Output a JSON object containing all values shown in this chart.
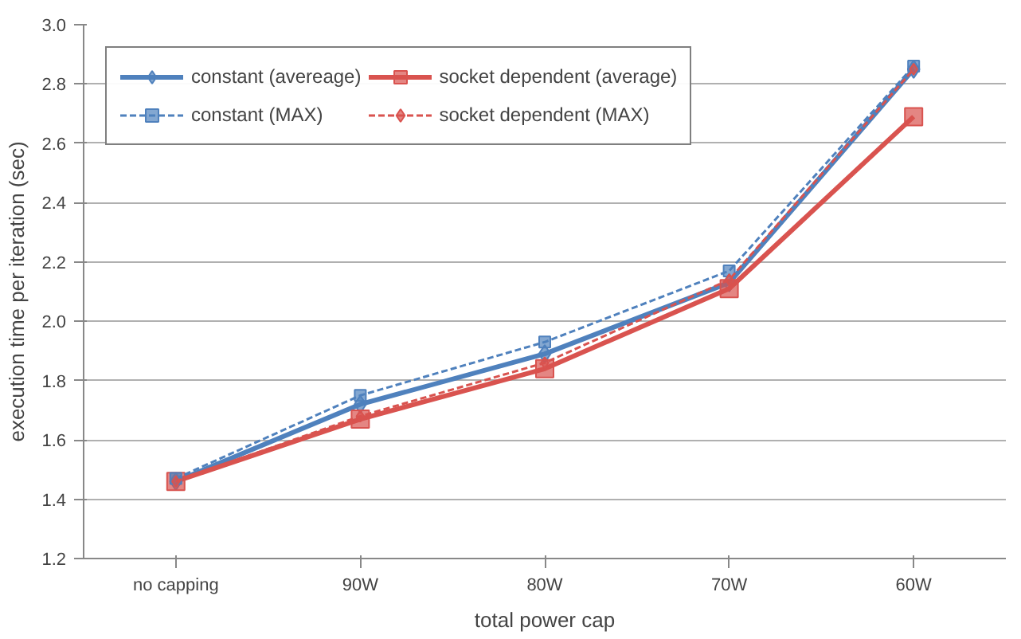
{
  "chart_data": {
    "type": "line",
    "xlabel": "total power cap",
    "ylabel": "execution time per iteration (sec)",
    "categories": [
      "no capping",
      "90W",
      "80W",
      "70W",
      "60W"
    ],
    "ylim": [
      1.2,
      3.0
    ],
    "yticks": [
      {
        "value": 1.2,
        "label": "1.2"
      },
      {
        "value": 1.4,
        "label": "1.4"
      },
      {
        "value": 1.6,
        "label": "1.6"
      },
      {
        "value": 1.8,
        "label": "1.8"
      },
      {
        "value": 2.0,
        "label": "2.0"
      },
      {
        "value": 2.2,
        "label": "2.2"
      },
      {
        "value": 2.4,
        "label": "2.4"
      },
      {
        "value": 2.6,
        "label": "2.6"
      },
      {
        "value": 2.8,
        "label": "2.8"
      },
      {
        "value": 3.0,
        "label": "3.0"
      }
    ],
    "grid": "y",
    "legend": "top left",
    "series": [
      {
        "name": "constant (avereage)",
        "color": "#4f81bd",
        "marker": "diamond",
        "line_style": "solid",
        "values": [
          1.46,
          1.72,
          1.89,
          2.13,
          2.85
        ]
      },
      {
        "name": "socket dependent (average)",
        "color": "#d9534f",
        "marker": "square",
        "line_style": "solid",
        "values": [
          1.46,
          1.67,
          1.84,
          2.11,
          2.69
        ]
      },
      {
        "name": "constant (MAX)",
        "color": "#4f81bd",
        "marker": "square",
        "line_style": "dashed",
        "values": [
          1.47,
          1.75,
          1.93,
          2.17,
          2.86
        ]
      },
      {
        "name": "socket dependent (MAX)",
        "color": "#d9534f",
        "marker": "diamond",
        "line_style": "dashed",
        "values": [
          1.46,
          1.68,
          1.86,
          2.14,
          2.85
        ]
      }
    ]
  }
}
